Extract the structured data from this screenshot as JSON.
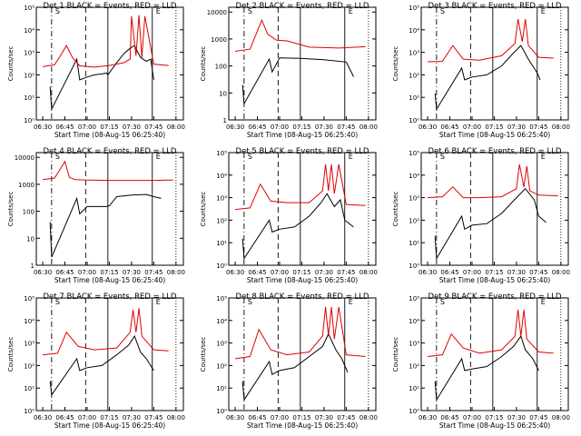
{
  "figure": {
    "xlabel": "Start Time (08-Aug-15 06:25:40)",
    "ylabel": "Counts/sec",
    "x_ticks": [
      "06:30",
      "06:45",
      "07:00",
      "07:15",
      "07:30",
      "07:45",
      "08:00"
    ],
    "colors": {
      "events": "#000000",
      "lld": "#e00000",
      "axes": "#000000"
    },
    "markers": [
      {
        "time": "06:36",
        "style": "dash-dot"
      },
      {
        "time": "06:59",
        "style": "dashed"
      },
      {
        "time": "07:14",
        "style": "solid"
      },
      {
        "time": "07:44",
        "style": "solid"
      },
      {
        "time": "08:00",
        "style": "dotted"
      }
    ],
    "marker_labels": [
      {
        "text": "S",
        "time": "06:36"
      },
      {
        "text": "E",
        "time": "07:44"
      }
    ]
  },
  "chart_data": [
    {
      "type": "line",
      "title": "Det 1  BLACK = Events, RED = LLD",
      "yscale": "log",
      "ylim": [
        1,
        100000
      ],
      "y_ticks": [
        "10⁰",
        "10¹",
        "10²",
        "10³",
        "10⁴",
        "10⁵"
      ],
      "series": [
        {
          "name": "Events",
          "color": "#000000",
          "x": [
            "06:35",
            "06:36",
            "06:53",
            "06:55",
            "07:00",
            "07:05",
            "07:10",
            "07:13",
            "07:14",
            "07:20",
            "07:25",
            "07:29",
            "07:32",
            "07:36",
            "07:40",
            "07:43",
            "07:45"
          ],
          "y": [
            30,
            3,
            500,
            60,
            80,
            100,
            110,
            120,
            100,
            350,
            900,
            1500,
            2000,
            600,
            400,
            500,
            60
          ]
        },
        {
          "name": "LLD",
          "color": "#e00000",
          "x": [
            "06:30",
            "06:38",
            "06:42",
            "06:46",
            "06:50",
            "06:55",
            "07:05",
            "07:15",
            "07:25",
            "07:29",
            "07:30",
            "07:33",
            "07:35",
            "07:37",
            "07:39",
            "07:45",
            "07:55"
          ],
          "y": [
            230,
            280,
            700,
            2000,
            600,
            250,
            220,
            260,
            350,
            500,
            40000,
            700,
            45000,
            600,
            40000,
            300,
            260
          ]
        }
      ]
    },
    {
      "type": "line",
      "title": "Det 2  BLACK = Events, RED = LLD",
      "yscale": "log",
      "ylim": [
        1,
        15000
      ],
      "y_ticks": [
        "1",
        "10",
        "100",
        "1000",
        "10000"
      ],
      "series": [
        {
          "name": "Events",
          "color": "#000000",
          "x": [
            "06:35",
            "06:36",
            "06:53",
            "06:55",
            "07:00",
            "07:14",
            "07:30",
            "07:45",
            "07:50"
          ],
          "y": [
            20,
            4,
            180,
            60,
            200,
            190,
            170,
            140,
            40
          ]
        },
        {
          "name": "LLD",
          "color": "#e00000",
          "x": [
            "06:30",
            "06:40",
            "06:48",
            "06:52",
            "06:58",
            "07:05",
            "07:20",
            "07:40",
            "07:58"
          ],
          "y": [
            350,
            420,
            5000,
            1500,
            900,
            850,
            500,
            460,
            520
          ]
        }
      ]
    },
    {
      "type": "line",
      "title": "Det 3  BLACK = Events, RED = LLD",
      "yscale": "log",
      "ylim": [
        1,
        100000
      ],
      "y_ticks": [
        "10⁰",
        "10¹",
        "10²",
        "10³",
        "10⁴",
        "10⁵"
      ],
      "series": [
        {
          "name": "Events",
          "color": "#000000",
          "x": [
            "06:35",
            "06:36",
            "06:53",
            "06:55",
            "07:00",
            "07:10",
            "07:20",
            "07:27",
            "07:33",
            "07:38",
            "07:44",
            "07:46"
          ],
          "y": [
            15,
            3,
            200,
            60,
            80,
            100,
            250,
            800,
            2000,
            500,
            120,
            60
          ]
        },
        {
          "name": "LLD",
          "color": "#e00000",
          "x": [
            "06:30",
            "06:40",
            "06:47",
            "06:54",
            "07:05",
            "07:20",
            "07:29",
            "07:31",
            "07:34",
            "07:36",
            "07:38",
            "07:45",
            "07:55"
          ],
          "y": [
            380,
            400,
            2000,
            500,
            450,
            700,
            2500,
            30000,
            3000,
            30000,
            2000,
            600,
            550
          ]
        }
      ]
    },
    {
      "type": "line",
      "title": "Det 4  BLACK = Events, RED = LLD",
      "yscale": "log",
      "ylim": [
        1,
        15000
      ],
      "y_ticks": [
        "1",
        "10",
        "100",
        "1000",
        "10000"
      ],
      "series": [
        {
          "name": "Events",
          "color": "#000000",
          "x": [
            "06:35",
            "06:36",
            "06:53",
            "06:55",
            "07:00",
            "07:13",
            "07:15",
            "07:20",
            "07:30",
            "07:40",
            "07:45",
            "07:50"
          ],
          "y": [
            40,
            2,
            300,
            80,
            150,
            150,
            160,
            350,
            400,
            420,
            350,
            300
          ]
        },
        {
          "name": "LLD",
          "color": "#e00000",
          "x": [
            "06:30",
            "06:38",
            "06:45",
            "06:48",
            "06:52",
            "06:58",
            "07:15",
            "07:45",
            "07:58"
          ],
          "y": [
            1500,
            1700,
            7000,
            1800,
            1500,
            1450,
            1400,
            1400,
            1450
          ]
        }
      ]
    },
    {
      "type": "line",
      "title": "Det 5  BLACK = Events, RED = LLD",
      "yscale": "log",
      "ylim": [
        1,
        100000
      ],
      "y_ticks": [
        "10⁰",
        "10¹",
        "10²",
        "10³",
        "10⁴",
        "10⁵"
      ],
      "series": [
        {
          "name": "Events",
          "color": "#000000",
          "x": [
            "06:35",
            "06:36",
            "06:53",
            "06:55",
            "07:00",
            "07:10",
            "07:20",
            "07:28",
            "07:32",
            "07:37",
            "07:41",
            "07:44",
            "07:50"
          ],
          "y": [
            15,
            2,
            100,
            30,
            40,
            50,
            150,
            600,
            1500,
            400,
            800,
            100,
            50
          ]
        },
        {
          "name": "LLD",
          "color": "#e00000",
          "x": [
            "06:30",
            "06:40",
            "06:47",
            "06:54",
            "07:05",
            "07:20",
            "07:29",
            "07:31",
            "07:33",
            "07:35",
            "07:37",
            "07:40",
            "07:45",
            "07:58"
          ],
          "y": [
            300,
            350,
            4000,
            700,
            600,
            600,
            2000,
            30000,
            2000,
            30000,
            1500,
            30000,
            500,
            450
          ]
        }
      ]
    },
    {
      "type": "line",
      "title": "Det 6  BLACK = Events, RED = LLD",
      "yscale": "log",
      "ylim": [
        1,
        100000
      ],
      "y_ticks": [
        "10⁰",
        "10¹",
        "10²",
        "10³",
        "10⁴",
        "10⁵"
      ],
      "series": [
        {
          "name": "Events",
          "color": "#000000",
          "x": [
            "06:35",
            "06:36",
            "06:53",
            "06:55",
            "07:00",
            "07:10",
            "07:20",
            "07:30",
            "07:36",
            "07:42",
            "07:45",
            "07:50"
          ],
          "y": [
            20,
            2,
            150,
            40,
            60,
            70,
            200,
            1000,
            2500,
            800,
            150,
            80
          ]
        },
        {
          "name": "LLD",
          "color": "#e00000",
          "x": [
            "06:30",
            "06:40",
            "06:47",
            "06:54",
            "07:05",
            "07:20",
            "07:30",
            "07:32",
            "07:35",
            "07:37",
            "07:39",
            "07:45",
            "07:58"
          ],
          "y": [
            1000,
            1100,
            3000,
            1000,
            1000,
            1100,
            2500,
            30000,
            3000,
            25000,
            2000,
            1300,
            1200
          ]
        }
      ]
    },
    {
      "type": "line",
      "title": "Det 7  BLACK = Events, RED = LLD",
      "yscale": "log",
      "ylim": [
        1,
        100000
      ],
      "y_ticks": [
        "10⁰",
        "10¹",
        "10²",
        "10³",
        "10⁴",
        "10⁵"
      ],
      "series": [
        {
          "name": "Events",
          "color": "#000000",
          "x": [
            "06:35",
            "06:36",
            "06:53",
            "06:55",
            "07:00",
            "07:10",
            "07:20",
            "07:28",
            "07:32",
            "07:36",
            "07:40",
            "07:45"
          ],
          "y": [
            20,
            5,
            200,
            60,
            80,
            100,
            300,
            800,
            2000,
            400,
            200,
            60
          ]
        },
        {
          "name": "LLD",
          "color": "#e00000",
          "x": [
            "06:30",
            "06:40",
            "06:46",
            "06:54",
            "07:05",
            "07:20",
            "07:29",
            "07:31",
            "07:33",
            "07:35",
            "07:37",
            "07:45",
            "07:55"
          ],
          "y": [
            300,
            350,
            3000,
            700,
            500,
            600,
            3000,
            30000,
            3000,
            35000,
            2000,
            500,
            450
          ]
        }
      ]
    },
    {
      "type": "line",
      "title": "Det 8  BLACK = Events, RED = LLD",
      "yscale": "log",
      "ylim": [
        1,
        100000
      ],
      "y_ticks": [
        "10⁰",
        "10¹",
        "10²",
        "10³",
        "10⁴",
        "10⁵"
      ],
      "series": [
        {
          "name": "Events",
          "color": "#000000",
          "x": [
            "06:35",
            "06:36",
            "06:53",
            "06:55",
            "07:00",
            "07:10",
            "07:20",
            "07:29",
            "07:33",
            "07:38",
            "07:42",
            "07:46"
          ],
          "y": [
            20,
            3,
            150,
            40,
            60,
            80,
            250,
            700,
            2500,
            500,
            200,
            50
          ]
        },
        {
          "name": "LLD",
          "color": "#e00000",
          "x": [
            "06:30",
            "06:40",
            "06:46",
            "06:54",
            "07:05",
            "07:20",
            "07:29",
            "07:31",
            "07:33",
            "07:35",
            "07:37",
            "07:40",
            "07:45",
            "07:58"
          ],
          "y": [
            200,
            250,
            4000,
            500,
            300,
            400,
            2000,
            40000,
            2000,
            40000,
            1500,
            40000,
            300,
            250
          ]
        }
      ]
    },
    {
      "type": "line",
      "title": "Det 9  BLACK = Events, RED = LLD",
      "yscale": "log",
      "ylim": [
        1,
        100000
      ],
      "y_ticks": [
        "10⁰",
        "10¹",
        "10²",
        "10³",
        "10⁴",
        "10⁵"
      ],
      "series": [
        {
          "name": "Events",
          "color": "#000000",
          "x": [
            "06:35",
            "06:36",
            "06:53",
            "06:55",
            "07:00",
            "07:10",
            "07:20",
            "07:28",
            "07:33",
            "07:36",
            "07:41",
            "07:45"
          ],
          "y": [
            20,
            3,
            200,
            60,
            70,
            90,
            250,
            700,
            2000,
            500,
            200,
            60
          ]
        },
        {
          "name": "LLD",
          "color": "#e00000",
          "x": [
            "06:30",
            "06:40",
            "06:46",
            "06:54",
            "07:05",
            "07:20",
            "07:29",
            "07:31",
            "07:33",
            "07:35",
            "07:37",
            "07:45",
            "07:55"
          ],
          "y": [
            250,
            300,
            2500,
            600,
            350,
            500,
            2000,
            30000,
            2000,
            30000,
            1500,
            400,
            350
          ]
        }
      ]
    }
  ]
}
